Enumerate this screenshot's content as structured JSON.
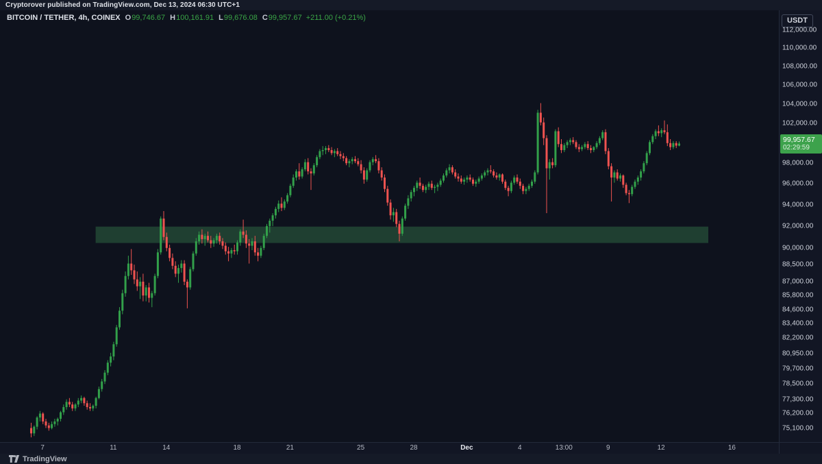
{
  "header": {
    "publish_line": "Cryptorover published on TradingView.com, Dec 13, 2024 06:30 UTC+1"
  },
  "legend": {
    "symbol": "BITCOIN / TETHER, 4h, COINEX",
    "o_label": "O",
    "o": "99,746.67",
    "h_label": "H",
    "h": "100,161.91",
    "l_label": "L",
    "l": "99,676.08",
    "c_label": "C",
    "c": "99,957.67",
    "change": "+211.00 (+0.21%)"
  },
  "price_axis": {
    "currency": "USDT",
    "badge": {
      "price": "99,957.67",
      "countdown": "02:29:59"
    }
  },
  "footer": {
    "brand": "TradingView"
  },
  "colors": {
    "up": "#32a04a",
    "down": "#ef5350",
    "badge": "#3da24c",
    "zone_fill": "rgba(62,150,90,0.35)",
    "value_text": "#3aa546"
  },
  "chart_data": {
    "type": "candlestick",
    "title": "BITCOIN / TETHER",
    "interval": "4h",
    "exchange": "COINEX",
    "scale": "log",
    "ylim": [
      74050,
      114280
    ],
    "grid": false,
    "legend_position": "top-left",
    "y_ticks": [
      112000,
      110000,
      108000,
      106000,
      104000,
      102000,
      98000,
      96000,
      94000,
      92000,
      90000,
      88500,
      87000,
      85800,
      84600,
      83400,
      82200,
      80950,
      79700,
      78500,
      77300,
      76200,
      75100
    ],
    "x_ticks": [
      {
        "label": "7",
        "index": 4
      },
      {
        "label": "11",
        "index": 28
      },
      {
        "label": "14",
        "index": 46
      },
      {
        "label": "18",
        "index": 70
      },
      {
        "label": "21",
        "index": 88
      },
      {
        "label": "25",
        "index": 112
      },
      {
        "label": "28",
        "index": 130
      },
      {
        "label": "Dec",
        "index": 148,
        "bold": true
      },
      {
        "label": "4",
        "index": 166
      },
      {
        "label": "13:00",
        "index": 181
      },
      {
        "label": "9",
        "index": 196
      },
      {
        "label": "12",
        "index": 214
      },
      {
        "label": "16",
        "index": 238
      }
    ],
    "zone": {
      "name": "support-zone",
      "price_top": 91950,
      "price_bottom": 90450,
      "start_index": 22,
      "end_index": 230
    },
    "plot": {
      "first_candle_x": 45,
      "candle_spacing": 4.3,
      "body_width": 3,
      "pane_width": 1137,
      "pane_height": 630
    },
    "candles": [
      [
        75100,
        75500,
        74400,
        74700
      ],
      [
        74700,
        75300,
        74500,
        75200
      ],
      [
        75200,
        76000,
        75000,
        75900
      ],
      [
        75900,
        76400,
        75600,
        76200
      ],
      [
        76200,
        76300,
        75400,
        75600
      ],
      [
        75600,
        75800,
        75100,
        75300
      ],
      [
        75300,
        75500,
        74900,
        75100
      ],
      [
        75100,
        75600,
        75000,
        75400
      ],
      [
        75400,
        75800,
        75200,
        75600
      ],
      [
        75600,
        75900,
        75300,
        75800
      ],
      [
        75800,
        76400,
        75600,
        76300
      ],
      [
        76300,
        76900,
        76100,
        76700
      ],
      [
        76700,
        77300,
        76500,
        77100
      ],
      [
        77100,
        77400,
        76700,
        76900
      ],
      [
        76900,
        77100,
        76400,
        76600
      ],
      [
        76600,
        77000,
        76400,
        76900
      ],
      [
        76900,
        77400,
        76700,
        77200
      ],
      [
        77200,
        77600,
        77000,
        77400
      ],
      [
        77400,
        77500,
        76800,
        77000
      ],
      [
        77000,
        77200,
        76500,
        76700
      ],
      [
        76700,
        77000,
        76400,
        76600
      ],
      [
        76600,
        76900,
        76400,
        76800
      ],
      [
        76800,
        77500,
        76600,
        77400
      ],
      [
        77400,
        78300,
        77300,
        78100
      ],
      [
        78100,
        78900,
        77900,
        78700
      ],
      [
        78700,
        79600,
        78500,
        79400
      ],
      [
        79400,
        80400,
        79200,
        80200
      ],
      [
        80200,
        81000,
        79900,
        80700
      ],
      [
        80700,
        81900,
        80400,
        81700
      ],
      [
        81700,
        83300,
        81500,
        83100
      ],
      [
        83100,
        84800,
        82900,
        84500
      ],
      [
        84500,
        86300,
        84200,
        86000
      ],
      [
        86000,
        87900,
        85700,
        87500
      ],
      [
        87500,
        89300,
        87200,
        88600
      ],
      [
        88600,
        89900,
        87600,
        88000
      ],
      [
        88000,
        88500,
        86800,
        87200
      ],
      [
        87200,
        87900,
        86200,
        86600
      ],
      [
        86600,
        87400,
        85500,
        87000
      ],
      [
        87000,
        87700,
        85300,
        85800
      ],
      [
        85800,
        86700,
        85300,
        86500
      ],
      [
        86500,
        86900,
        85200,
        85600
      ],
      [
        85600,
        86200,
        84800,
        86000
      ],
      [
        86000,
        87700,
        85800,
        87500
      ],
      [
        87500,
        89900,
        87300,
        89600
      ],
      [
        89600,
        92900,
        89400,
        92700
      ],
      [
        92700,
        93400,
        90700,
        91000
      ],
      [
        91000,
        91400,
        89700,
        90000
      ],
      [
        90000,
        90300,
        88800,
        89100
      ],
      [
        89100,
        89500,
        88100,
        88400
      ],
      [
        88400,
        88800,
        87400,
        87700
      ],
      [
        87700,
        88500,
        86900,
        88200
      ],
      [
        88200,
        88900,
        87800,
        88600
      ],
      [
        88600,
        88900,
        86700,
        87000
      ],
      [
        87000,
        87200,
        84700,
        86500
      ],
      [
        86500,
        88300,
        86300,
        88100
      ],
      [
        88100,
        89700,
        87900,
        89500
      ],
      [
        89500,
        90900,
        89300,
        90600
      ],
      [
        90600,
        91500,
        90300,
        91200
      ],
      [
        91200,
        91700,
        90400,
        90800
      ],
      [
        90800,
        91300,
        90200,
        91100
      ],
      [
        91100,
        91500,
        90500,
        90700
      ],
      [
        90700,
        91100,
        90000,
        90400
      ],
      [
        90400,
        90900,
        90100,
        90700
      ],
      [
        90700,
        91300,
        90400,
        91100
      ],
      [
        91100,
        91400,
        90300,
        90600
      ],
      [
        90600,
        90900,
        89900,
        90200
      ],
      [
        90200,
        90500,
        89400,
        89700
      ],
      [
        89700,
        90100,
        88800,
        89500
      ],
      [
        89500,
        90000,
        89100,
        89800
      ],
      [
        89800,
        90300,
        89400,
        89700
      ],
      [
        89700,
        90700,
        89400,
        90500
      ],
      [
        90500,
        91700,
        90200,
        91500
      ],
      [
        91500,
        92600,
        90900,
        91200
      ],
      [
        91200,
        91600,
        90000,
        90400
      ],
      [
        90400,
        90800,
        88600,
        90200
      ],
      [
        90200,
        90900,
        89800,
        90600
      ],
      [
        90600,
        91100,
        89300,
        89600
      ],
      [
        89600,
        90000,
        88800,
        89300
      ],
      [
        89300,
        90200,
        89100,
        90000
      ],
      [
        90000,
        91300,
        89800,
        91100
      ],
      [
        91100,
        92200,
        90900,
        92000
      ],
      [
        92000,
        92700,
        91400,
        92500
      ],
      [
        92500,
        93200,
        92000,
        93000
      ],
      [
        93000,
        93800,
        92700,
        93600
      ],
      [
        93600,
        94400,
        93300,
        94100
      ],
      [
        94100,
        94700,
        93400,
        93700
      ],
      [
        93700,
        94500,
        93500,
        94300
      ],
      [
        94300,
        95100,
        94100,
        94900
      ],
      [
        94900,
        96000,
        94700,
        95800
      ],
      [
        95800,
        96900,
        95600,
        96600
      ],
      [
        96600,
        97400,
        96300,
        97200
      ],
      [
        97200,
        98000,
        96400,
        96700
      ],
      [
        96700,
        97600,
        96500,
        97400
      ],
      [
        97400,
        98400,
        97200,
        98100
      ],
      [
        98100,
        98500,
        96900,
        97200
      ],
      [
        97200,
        97500,
        95400,
        97000
      ],
      [
        97000,
        98000,
        96800,
        97800
      ],
      [
        97800,
        98800,
        97600,
        98600
      ],
      [
        98600,
        99400,
        98400,
        99200
      ],
      [
        99200,
        99700,
        98800,
        99300
      ],
      [
        99300,
        99700,
        98900,
        99500
      ],
      [
        99500,
        99800,
        99100,
        99300
      ],
      [
        99300,
        99600,
        98800,
        99000
      ],
      [
        99000,
        99400,
        98600,
        99200
      ],
      [
        99200,
        99500,
        98700,
        98900
      ],
      [
        98900,
        99200,
        98400,
        98700
      ],
      [
        98700,
        99000,
        98200,
        98500
      ],
      [
        98500,
        98700,
        97800,
        98000
      ],
      [
        98000,
        98400,
        97600,
        98200
      ],
      [
        98200,
        98600,
        97900,
        98400
      ],
      [
        98400,
        98700,
        98000,
        98200
      ],
      [
        98200,
        98500,
        97700,
        97900
      ],
      [
        97900,
        98300,
        97000,
        97300
      ],
      [
        97300,
        97600,
        96000,
        96400
      ],
      [
        96400,
        97500,
        96200,
        97300
      ],
      [
        97300,
        98300,
        97100,
        98100
      ],
      [
        98100,
        98600,
        97800,
        98400
      ],
      [
        98400,
        98800,
        98000,
        98200
      ],
      [
        98200,
        98500,
        97000,
        97300
      ],
      [
        97300,
        97600,
        96300,
        96600
      ],
      [
        96600,
        96900,
        95200,
        95500
      ],
      [
        95500,
        95800,
        93900,
        94200
      ],
      [
        94200,
        94500,
        92600,
        93000
      ],
      [
        93000,
        93700,
        92400,
        93300
      ],
      [
        93300,
        93600,
        91900,
        92200
      ],
      [
        92200,
        92500,
        90600,
        91300
      ],
      [
        91300,
        92900,
        91100,
        92700
      ],
      [
        92700,
        94100,
        92500,
        93900
      ],
      [
        93900,
        94900,
        93600,
        94600
      ],
      [
        94600,
        95400,
        94300,
        95200
      ],
      [
        95200,
        95800,
        94800,
        95600
      ],
      [
        95600,
        96300,
        95300,
        96100
      ],
      [
        96100,
        96600,
        95500,
        95800
      ],
      [
        95800,
        96000,
        95200,
        95400
      ],
      [
        95400,
        95900,
        95100,
        95700
      ],
      [
        95700,
        96200,
        95400,
        96000
      ],
      [
        96000,
        96300,
        95400,
        95600
      ],
      [
        95600,
        95900,
        95100,
        95700
      ],
      [
        95700,
        96100,
        95300,
        95900
      ],
      [
        95900,
        96500,
        95700,
        96300
      ],
      [
        96300,
        97000,
        96100,
        96800
      ],
      [
        96800,
        97500,
        96600,
        97300
      ],
      [
        97300,
        97900,
        97000,
        97600
      ],
      [
        97600,
        97800,
        96900,
        97100
      ],
      [
        97100,
        97400,
        96500,
        96700
      ],
      [
        96700,
        97000,
        96200,
        96500
      ],
      [
        96500,
        96800,
        96000,
        96200
      ],
      [
        96200,
        96600,
        95900,
        96400
      ],
      [
        96400,
        96800,
        96100,
        96600
      ],
      [
        96600,
        96900,
        96200,
        96400
      ],
      [
        96400,
        96600,
        95800,
        96000
      ],
      [
        96000,
        96400,
        95700,
        96200
      ],
      [
        96200,
        96700,
        96000,
        96500
      ],
      [
        96500,
        97000,
        96300,
        96800
      ],
      [
        96800,
        97300,
        96600,
        97100
      ],
      [
        97100,
        97500,
        96800,
        97300
      ],
      [
        97300,
        97800,
        97000,
        97200
      ],
      [
        97200,
        97400,
        96600,
        96800
      ],
      [
        96800,
        97100,
        96400,
        96600
      ],
      [
        96600,
        97000,
        96300,
        96900
      ],
      [
        96900,
        97000,
        96000,
        96200
      ],
      [
        96200,
        96400,
        95400,
        95600
      ],
      [
        95600,
        95800,
        94800,
        95300
      ],
      [
        95300,
        96300,
        95100,
        96100
      ],
      [
        96100,
        96800,
        95900,
        96600
      ],
      [
        96600,
        96900,
        96000,
        96200
      ],
      [
        96200,
        96500,
        95500,
        95800
      ],
      [
        95800,
        96000,
        95000,
        95300
      ],
      [
        95300,
        95700,
        95000,
        95500
      ],
      [
        95500,
        96000,
        95300,
        95800
      ],
      [
        95800,
        96400,
        95600,
        96200
      ],
      [
        96200,
        97300,
        96000,
        97100
      ],
      [
        97100,
        103400,
        96900,
        103100
      ],
      [
        103100,
        104100,
        101800,
        102100
      ],
      [
        102100,
        102600,
        99800,
        100500
      ],
      [
        100500,
        100800,
        93200,
        97500
      ],
      [
        97500,
        98400,
        96400,
        98100
      ],
      [
        98100,
        98500,
        97500,
        97800
      ],
      [
        97800,
        101400,
        97600,
        101200
      ],
      [
        101200,
        101600,
        99600,
        99900
      ],
      [
        99900,
        100400,
        99000,
        99300
      ],
      [
        99300,
        100000,
        99100,
        99800
      ],
      [
        99800,
        100300,
        99500,
        100100
      ],
      [
        100100,
        100500,
        99800,
        100300
      ],
      [
        100300,
        100600,
        99900,
        100100
      ],
      [
        100100,
        100300,
        99400,
        99600
      ],
      [
        99600,
        99900,
        99100,
        99400
      ],
      [
        99400,
        99800,
        99200,
        99600
      ],
      [
        99600,
        100100,
        99400,
        99900
      ],
      [
        99900,
        100200,
        99300,
        99500
      ],
      [
        99500,
        99800,
        99000,
        99300
      ],
      [
        99300,
        99700,
        99100,
        99600
      ],
      [
        99600,
        100200,
        99400,
        100000
      ],
      [
        100000,
        100700,
        99800,
        100500
      ],
      [
        100500,
        101300,
        100300,
        101100
      ],
      [
        101100,
        101400,
        98900,
        99200
      ],
      [
        99200,
        99500,
        97400,
        97700
      ],
      [
        97700,
        98000,
        94300,
        96600
      ],
      [
        96600,
        97300,
        96100,
        97100
      ],
      [
        97100,
        97400,
        96300,
        96500
      ],
      [
        96500,
        97000,
        96200,
        96800
      ],
      [
        96800,
        96900,
        95600,
        95900
      ],
      [
        95900,
        96100,
        94900,
        95100
      ],
      [
        95100,
        95400,
        94150,
        95000
      ],
      [
        95000,
        95900,
        94800,
        95700
      ],
      [
        95700,
        96400,
        95500,
        96200
      ],
      [
        96200,
        96800,
        95900,
        96600
      ],
      [
        96600,
        97400,
        96300,
        97200
      ],
      [
        97200,
        98200,
        97000,
        98000
      ],
      [
        98000,
        99200,
        97800,
        99000
      ],
      [
        99000,
        100300,
        98800,
        100100
      ],
      [
        100100,
        100900,
        99900,
        100700
      ],
      [
        100700,
        101400,
        100400,
        101200
      ],
      [
        101200,
        101800,
        100700,
        101000
      ],
      [
        101000,
        101500,
        100600,
        101300
      ],
      [
        101300,
        102300,
        100900,
        101100
      ],
      [
        101100,
        101900,
        99700,
        100000
      ],
      [
        100000,
        100400,
        99300,
        99600
      ],
      [
        99600,
        100200,
        99400,
        100000
      ],
      [
        100000,
        100200,
        99500,
        99747
      ],
      [
        99746.67,
        100161.91,
        99676.08,
        99957.67
      ]
    ]
  }
}
